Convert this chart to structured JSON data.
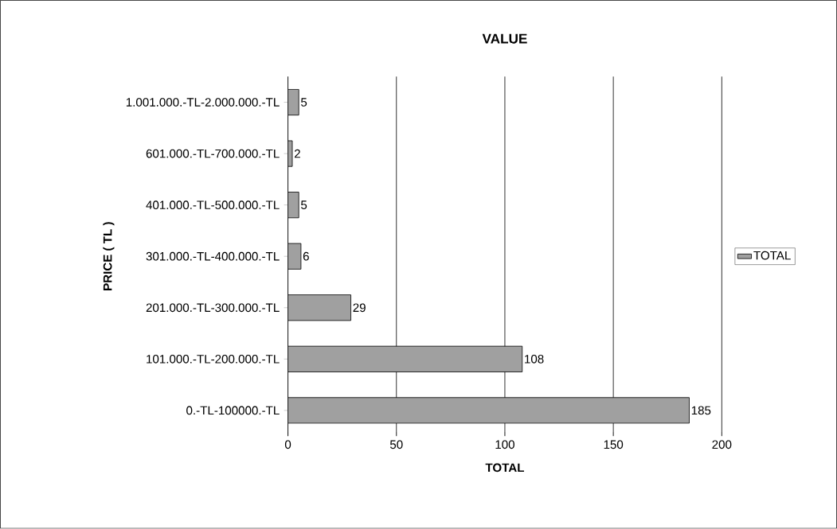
{
  "chart_data": {
    "type": "bar",
    "orientation": "horizontal",
    "title": "VALUE",
    "xlabel": "TOTAL",
    "ylabel": "PRICE ( TL )",
    "categories": [
      "1.001.000.-TL-2.000.000.-TL",
      "601.000.-TL-700.000.-TL",
      "401.000.-TL-500.000.-TL",
      "301.000.-TL-400.000.-TL",
      "201.000.-TL-300.000.-TL",
      "101.000.-TL-200.000.-TL",
      "0.-TL-100000.-TL"
    ],
    "series": [
      {
        "name": "TOTAL",
        "color": "#a0a0a0",
        "values": [
          5,
          2,
          5,
          6,
          29,
          108,
          185
        ]
      }
    ],
    "xlim": [
      0,
      200
    ],
    "xticks": [
      0,
      50,
      100,
      150,
      200
    ],
    "grid": "x",
    "legend": "right",
    "data_labels": true
  }
}
